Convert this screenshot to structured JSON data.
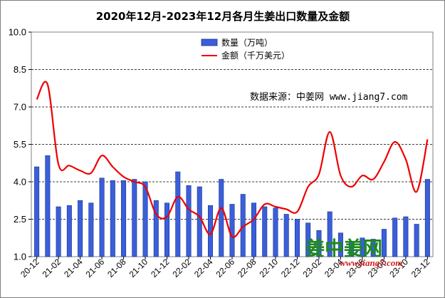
{
  "chart_data": {
    "type": "bar",
    "title": "2020年12月-2023年12月各月生姜出口数量及金额",
    "categories": [
      "20-12",
      "21-01",
      "21-02",
      "21-03",
      "21-04",
      "21-05",
      "21-06",
      "21-07",
      "21-08",
      "21-09",
      "21-10",
      "21-11",
      "21-12",
      "22-01",
      "22-02",
      "22-03",
      "22-04",
      "22-05",
      "22-06",
      "22-07",
      "22-08",
      "22-09",
      "22-10",
      "22-11",
      "22-12",
      "23-01",
      "23-02",
      "23-03",
      "23-04",
      "23-05",
      "23-06",
      "23-07",
      "23-08",
      "23-09",
      "23-10",
      "23-11",
      "23-12"
    ],
    "x_tick_labels": [
      "20-12",
      "21-02",
      "21-04",
      "21-06",
      "21-08",
      "21-10",
      "21-12",
      "22-02",
      "22-04",
      "22-06",
      "22-08",
      "22-10",
      "22-12",
      "23-02",
      "23-04",
      "23-06",
      "23-08",
      "23-10",
      "23-12"
    ],
    "y_tick_labels": [
      "1.0",
      "2.5",
      "4.0",
      "5.5",
      "7.0",
      "8.5",
      "10.0"
    ],
    "ylim": [
      1.0,
      10.0
    ],
    "grid": true,
    "legend_position": "top-center",
    "series": [
      {
        "name": "数量（万吨）",
        "type": "bar",
        "color": "#3a5fd9",
        "values": [
          4.6,
          5.05,
          3.0,
          3.05,
          3.25,
          3.15,
          4.15,
          4.05,
          4.05,
          4.1,
          4.0,
          3.25,
          3.15,
          4.4,
          3.85,
          3.8,
          3.05,
          4.1,
          3.1,
          3.5,
          3.15,
          3.0,
          2.95,
          2.7,
          2.5,
          2.35,
          2.05,
          2.8,
          1.95,
          1.6,
          1.75,
          1.7,
          2.1,
          2.55,
          2.6,
          2.3,
          4.1
        ]
      },
      {
        "name": "金额（千万美元）",
        "type": "line",
        "color": "#ee0000",
        "values": [
          7.3,
          7.9,
          4.7,
          4.65,
          4.45,
          4.35,
          5.05,
          4.6,
          4.2,
          4.0,
          3.8,
          2.7,
          2.6,
          3.4,
          2.9,
          2.6,
          1.9,
          2.95,
          1.8,
          2.2,
          2.5,
          3.1,
          3.0,
          2.9,
          2.8,
          3.8,
          4.3,
          6.0,
          4.25,
          3.8,
          4.25,
          4.1,
          4.8,
          5.6,
          4.9,
          3.6,
          5.7
        ]
      }
    ]
  },
  "source_note": "数据来源：中姜网 www.jiang7.com",
  "watermark": {
    "brand_text": "姜中姜网",
    "url_text": "www.jiang7.com",
    "color": "#1d8a1d",
    "url_color": "#d02020"
  }
}
